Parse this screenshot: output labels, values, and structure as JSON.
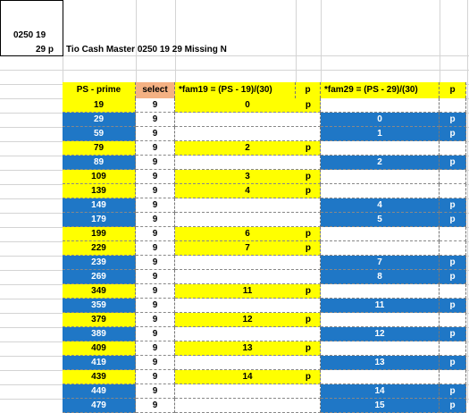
{
  "title_box": {
    "line1": "0250 19",
    "line2": "29 p"
  },
  "sheet_title": "Tio Cash Master 0250 19 29 Missing N",
  "headers": [
    "PS - prime",
    "select",
    "*fam19 =  (PS - 19)/(30)",
    "p",
    "*fam29 =  (PS - 29)/(30)",
    "p"
  ],
  "rows": [
    {
      "ps": "19",
      "select": "9",
      "fam19": "0",
      "p19": "p",
      "fam29": "",
      "p29": "",
      "ps_color": "yellow",
      "f19_color": "yellow",
      "f29_color": "white"
    },
    {
      "ps": "29",
      "select": "9",
      "fam19": "",
      "p19": "",
      "fam29": "0",
      "p29": "p",
      "ps_color": "blue",
      "f19_color": "white",
      "f29_color": "blue"
    },
    {
      "ps": "59",
      "select": "9",
      "fam19": "",
      "p19": "",
      "fam29": "1",
      "p29": "p",
      "ps_color": "blue",
      "f19_color": "white",
      "f29_color": "blue"
    },
    {
      "ps": "79",
      "select": "9",
      "fam19": "2",
      "p19": "p",
      "fam29": "",
      "p29": "",
      "ps_color": "yellow",
      "f19_color": "yellow",
      "f29_color": "white"
    },
    {
      "ps": "89",
      "select": "9",
      "fam19": "",
      "p19": "",
      "fam29": "2",
      "p29": "p",
      "ps_color": "blue",
      "f19_color": "white",
      "f29_color": "blue"
    },
    {
      "ps": "109",
      "select": "9",
      "fam19": "3",
      "p19": "p",
      "fam29": "",
      "p29": "",
      "ps_color": "yellow",
      "f19_color": "yellow",
      "f29_color": "white"
    },
    {
      "ps": "139",
      "select": "9",
      "fam19": "4",
      "p19": "p",
      "fam29": "",
      "p29": "",
      "ps_color": "yellow",
      "f19_color": "yellow",
      "f29_color": "white"
    },
    {
      "ps": "149",
      "select": "9",
      "fam19": "",
      "p19": "",
      "fam29": "4",
      "p29": "p",
      "ps_color": "blue",
      "f19_color": "white",
      "f29_color": "blue"
    },
    {
      "ps": "179",
      "select": "9",
      "fam19": "",
      "p19": "",
      "fam29": "5",
      "p29": "p",
      "ps_color": "blue",
      "f19_color": "white",
      "f29_color": "blue"
    },
    {
      "ps": "199",
      "select": "9",
      "fam19": "6",
      "p19": "p",
      "fam29": "",
      "p29": "",
      "ps_color": "yellow",
      "f19_color": "yellow",
      "f29_color": "white"
    },
    {
      "ps": "229",
      "select": "9",
      "fam19": "7",
      "p19": "p",
      "fam29": "",
      "p29": "",
      "ps_color": "yellow",
      "f19_color": "yellow",
      "f29_color": "white"
    },
    {
      "ps": "239",
      "select": "9",
      "fam19": "",
      "p19": "",
      "fam29": "7",
      "p29": "p",
      "ps_color": "blue",
      "f19_color": "white",
      "f29_color": "blue"
    },
    {
      "ps": "269",
      "select": "9",
      "fam19": "",
      "p19": "",
      "fam29": "8",
      "p29": "p",
      "ps_color": "blue",
      "f19_color": "white",
      "f29_color": "blue"
    },
    {
      "ps": "349",
      "select": "9",
      "fam19": "11",
      "p19": "p",
      "fam29": "",
      "p29": "",
      "ps_color": "yellow",
      "f19_color": "yellow",
      "f29_color": "white"
    },
    {
      "ps": "359",
      "select": "9",
      "fam19": "",
      "p19": "",
      "fam29": "11",
      "p29": "p",
      "ps_color": "blue",
      "f19_color": "white",
      "f29_color": "blue"
    },
    {
      "ps": "379",
      "select": "9",
      "fam19": "12",
      "p19": "p",
      "fam29": "",
      "p29": "",
      "ps_color": "yellow",
      "f19_color": "yellow",
      "f29_color": "white"
    },
    {
      "ps": "389",
      "select": "9",
      "fam19": "",
      "p19": "",
      "fam29": "12",
      "p29": "p",
      "ps_color": "blue",
      "f19_color": "white",
      "f29_color": "blue"
    },
    {
      "ps": "409",
      "select": "9",
      "fam19": "13",
      "p19": "p",
      "fam29": "",
      "p29": "",
      "ps_color": "yellow",
      "f19_color": "yellow",
      "f29_color": "white"
    },
    {
      "ps": "419",
      "select": "9",
      "fam19": "",
      "p19": "",
      "fam29": "13",
      "p29": "p",
      "ps_color": "blue",
      "f19_color": "white",
      "f29_color": "blue"
    },
    {
      "ps": "439",
      "select": "9",
      "fam19": "14",
      "p19": "p",
      "fam29": "",
      "p29": "",
      "ps_color": "yellow",
      "f19_color": "yellow",
      "f29_color": "white"
    },
    {
      "ps": "449",
      "select": "9",
      "fam19": "",
      "p19": "",
      "fam29": "14",
      "p29": "p",
      "ps_color": "blue",
      "f19_color": "white",
      "f29_color": "blue"
    },
    {
      "ps": "479",
      "select": "9",
      "fam19": "",
      "p19": "",
      "fam29": "15",
      "p29": "p",
      "ps_color": "blue",
      "f19_color": "white",
      "f29_color": "blue"
    }
  ]
}
